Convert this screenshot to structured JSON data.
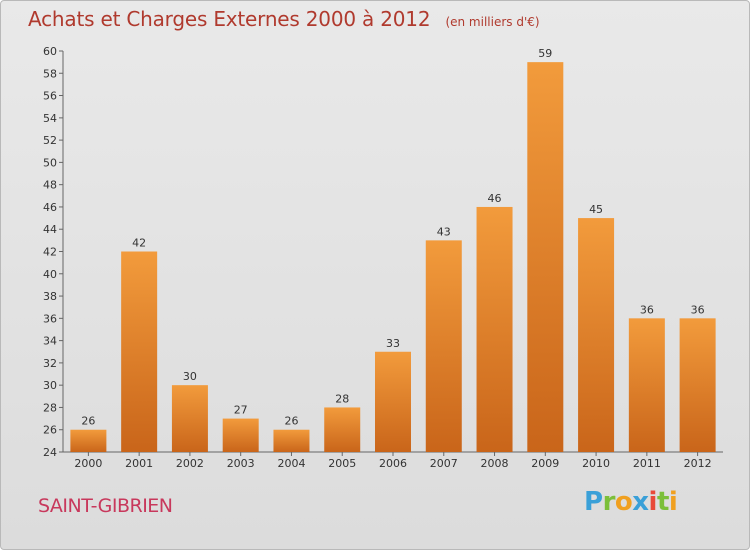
{
  "chart_data": {
    "type": "bar",
    "title": "Achats et Charges Externes 2000 à 2012",
    "unit_note": "(en milliers d'€)",
    "categories": [
      "2000",
      "2001",
      "2002",
      "2003",
      "2004",
      "2005",
      "2006",
      "2007",
      "2008",
      "2009",
      "2010",
      "2011",
      "2012"
    ],
    "values": [
      26,
      42,
      30,
      27,
      26,
      28,
      33,
      43,
      46,
      59,
      45,
      36,
      36
    ],
    "ylim": [
      24,
      60
    ],
    "ytick_step": 2,
    "grid": false,
    "bar_color": "#f29b3c",
    "bar_color_dark": "#c9651a"
  },
  "commune": "SAINT-GIBRIEN",
  "brand": {
    "letters": [
      "P",
      "r",
      "o",
      "x",
      "i",
      "t",
      "i"
    ],
    "colors": [
      "#3aa0d8",
      "#7cbf3a",
      "#f0a020",
      "#3aa0d8",
      "#e84a3a",
      "#7cbf3a",
      "#f0a020"
    ]
  }
}
